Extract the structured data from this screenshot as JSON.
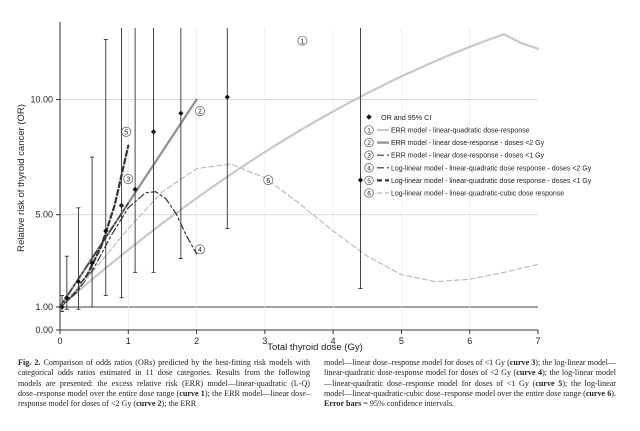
{
  "chart_data": {
    "type": "line",
    "xlabel": "Total thyroid dose (Gy)",
    "ylabel": "Relative risk of thyroid cancer (OR)",
    "xlim": [
      0,
      7
    ],
    "ylim": [
      0,
      13.1
    ],
    "x_ticks": [
      "0",
      "1",
      "2",
      "3",
      "4",
      "5",
      "6",
      "7"
    ],
    "y_ticks": [
      "0.00",
      "1.00",
      "5.00",
      "10.00"
    ],
    "y_tick_values": [
      0,
      1,
      5,
      10
    ],
    "legend": {
      "placement": "right",
      "points_label": "OR and 95% CI",
      "entries": [
        {
          "id": "1",
          "label": "ERR model - linear-quadratic dose-response"
        },
        {
          "id": "2",
          "label": "ERR model - linear dose-response - doses <2 Gy"
        },
        {
          "id": "3",
          "label": "ERR model - linear dose-response - doses <1 Gy"
        },
        {
          "id": "4",
          "label": "Log-linear model - linear-quadratic dose response - doses <2 Gy"
        },
        {
          "id": "5",
          "label": "Log-linear model - linear-quadratic dose response - doses <1 Gy"
        },
        {
          "id": "6",
          "label": "Log-linear model - linear-quadratic-cubic dose response"
        }
      ]
    },
    "points": [
      {
        "x": 0.03,
        "or": 1.0,
        "lo": 0.8,
        "hi": 1.5
      },
      {
        "x": 0.1,
        "or": 1.4,
        "lo": 0.9,
        "hi": 3.2
      },
      {
        "x": 0.27,
        "or": 2.1,
        "lo": 0.9,
        "hi": 5.3
      },
      {
        "x": 0.47,
        "or": 2.9,
        "lo": 1.0,
        "hi": 7.5
      },
      {
        "x": 0.67,
        "or": 4.3,
        "lo": 1.5,
        "hi": 12.6
      },
      {
        "x": 0.9,
        "or": 5.4,
        "lo": 1.4,
        "hi": 18.8
      },
      {
        "x": 1.1,
        "or": 6.1,
        "lo": 2.5,
        "hi": 16.2
      },
      {
        "x": 1.37,
        "or": 8.6,
        "lo": 2.5,
        "hi": 22.0
      },
      {
        "x": 1.77,
        "or": 9.4,
        "lo": 3.1,
        "hi": 22.0
      },
      {
        "x": 2.45,
        "or": 10.1,
        "lo": 4.4,
        "hi": 22.0
      },
      {
        "x": 4.4,
        "or": 6.5,
        "lo": 1.8,
        "hi": 22.0
      }
    ],
    "series": [
      {
        "name": "1",
        "style": "solid-thick",
        "color": "#c8c8c8",
        "x": [
          0,
          0.25,
          0.5,
          0.75,
          1,
          1.25,
          1.5,
          1.75,
          2,
          2.25,
          2.5,
          2.75,
          3,
          3.25,
          3.5,
          3.75,
          4,
          4.25,
          4.5,
          4.75,
          5,
          5.25,
          5.5,
          5.75,
          6,
          6.25,
          6.5,
          6.75,
          7
        ],
        "y": [
          1.0,
          1.64,
          2.27,
          2.88,
          3.48,
          4.06,
          4.63,
          5.18,
          5.72,
          6.24,
          6.75,
          7.24,
          7.72,
          8.18,
          8.63,
          9.06,
          9.48,
          9.88,
          10.27,
          10.64,
          11.0,
          11.34,
          11.67,
          11.98,
          12.28,
          12.56,
          12.83,
          12.45,
          12.2
        ]
      },
      {
        "name": "2",
        "style": "solid-thick",
        "color": "#8f8f8f",
        "x": [
          0,
          2
        ],
        "y": [
          1.0,
          10.0
        ]
      },
      {
        "name": "3",
        "style": "dashdot",
        "color": "#333333",
        "x": [
          0,
          1
        ],
        "y": [
          1.0,
          5.5
        ]
      },
      {
        "name": "4",
        "style": "dashdot",
        "color": "#333333",
        "x": [
          0,
          0.25,
          0.5,
          0.75,
          1,
          1.25,
          1.4,
          1.55,
          1.7,
          1.85,
          2
        ],
        "y": [
          1.0,
          1.65,
          2.7,
          4.1,
          5.3,
          5.95,
          6.0,
          5.7,
          5.05,
          4.1,
          3.3
        ]
      },
      {
        "name": "5",
        "style": "dashed-bold",
        "color": "#333333",
        "x": [
          0,
          0.2,
          0.4,
          0.6,
          0.8,
          1.0
        ],
        "y": [
          1.0,
          1.55,
          2.4,
          3.6,
          5.4,
          8.0
        ]
      },
      {
        "name": "6",
        "style": "dashed",
        "color": "#bdbdbd",
        "x": [
          0,
          0.5,
          1,
          1.5,
          2,
          2.5,
          3,
          3.5,
          4,
          4.5,
          5,
          5.5,
          6,
          6.5,
          7
        ],
        "y": [
          1.0,
          2.6,
          4.4,
          6.0,
          7.0,
          7.2,
          6.6,
          5.5,
          4.3,
          3.2,
          2.4,
          2.1,
          2.2,
          2.5,
          2.85
        ]
      }
    ],
    "curve_markers": [
      {
        "id": "1",
        "x": 3.55,
        "y": 12.55
      },
      {
        "id": "2",
        "x": 2.05,
        "y": 9.5
      },
      {
        "id": "3",
        "x": 1.0,
        "y": 6.55
      },
      {
        "id": "4",
        "x": 2.05,
        "y": 3.5
      },
      {
        "id": "5",
        "x": 0.97,
        "y": 8.6
      },
      {
        "id": "6",
        "x": 3.05,
        "y": 6.5
      }
    ]
  },
  "caption": {
    "fig_label": "Fig. 2.",
    "left_text": "Comparison of odds ratios (ORs) predicted by the best-fitting risk models with categorical odds ratios estimated in 11 dose categories. Results from the following models are presented: the excess relative risk (ERR) model—linear-quadratic (L-Q) dose–response model over the entire dose range (",
    "curve1": "curve 1",
    "left_text2": "); the ERR model—linear dose–response model for doses of <2 Gy (",
    "curve2": "curve 2",
    "left_text3": "); the ERR",
    "right_text": "model—linear dose–response model for doses of <1 Gy (",
    "curve3": "curve 3",
    "right_text2": "); the log-linear model—linear-quadratic dose-response model for doses of <2 Gy (",
    "curve4": "curve 4",
    "right_text3": "); the log-linear model—linear-quadratic dose–response model for doses of <1 Gy (",
    "curve5": "curve 5",
    "right_text4": "); the log-linear model—linear-quadratic-cubic dose–response model over the entire dose range (",
    "curve6": "curve 6",
    "right_text5": "). ",
    "error_bars": "Error bars",
    "right_text6": " = 95% confidence intervals."
  }
}
